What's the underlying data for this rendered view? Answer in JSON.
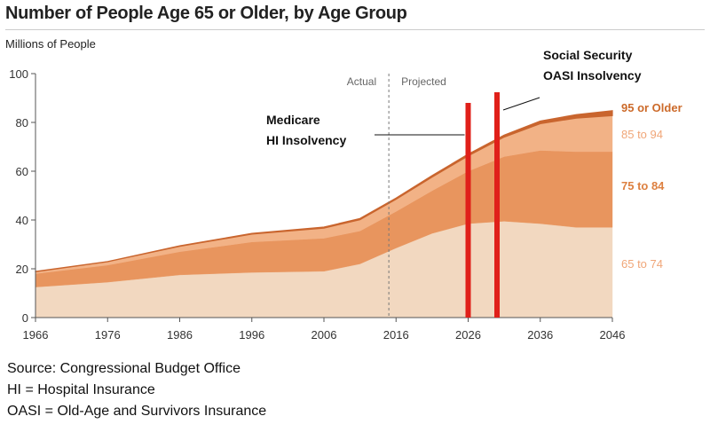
{
  "chart_data": {
    "type": "area",
    "title": "Number of People Age 65 or Older, by Age Group",
    "ylabel": "Millions of People",
    "xlabel": "",
    "xlim": [
      1966,
      2046
    ],
    "ylim": [
      0,
      100
    ],
    "x_ticks": [
      "1966",
      "1976",
      "1986",
      "1996",
      "2006",
      "2016",
      "2026",
      "2036",
      "2046"
    ],
    "y_ticks": [
      "0",
      "20",
      "40",
      "60",
      "80",
      "100"
    ],
    "stacked": true,
    "x": [
      1966,
      1976,
      1986,
      1996,
      2006,
      2011,
      2016,
      2021,
      2026,
      2031,
      2036,
      2041,
      2046
    ],
    "series": [
      {
        "name": "65 to 74",
        "color": "#f2d8c0",
        "label_color": "#f0a678",
        "values": [
          12.5,
          14.5,
          17.5,
          18.5,
          19.0,
          22.0,
          28.5,
          34.5,
          38.5,
          39.5,
          38.5,
          37.0,
          37.0
        ]
      },
      {
        "name": "75 to 84",
        "color": "#e8955e",
        "label_color": "#dd8040",
        "values": [
          5.5,
          7.0,
          9.5,
          12.5,
          13.5,
          13.5,
          15.0,
          17.5,
          21.5,
          26.5,
          30.0,
          31.0,
          31.0
        ]
      },
      {
        "name": "85 to 94",
        "color": "#f2b286",
        "label_color": "#f0a678",
        "values": [
          0.8,
          1.4,
          2.2,
          3.2,
          4.2,
          4.6,
          5.0,
          5.6,
          6.3,
          8.0,
          11.0,
          13.8,
          14.8
        ]
      },
      {
        "name": "95 or Older",
        "color": "#c9652e",
        "label_color": "#cc6a2a",
        "values": [
          0.1,
          0.1,
          0.2,
          0.3,
          0.4,
          0.5,
          0.5,
          0.6,
          0.7,
          0.8,
          1.1,
          1.4,
          2.0
        ]
      }
    ],
    "divider": {
      "x": 2015,
      "left_label": "Actual",
      "right_label": "Projected"
    },
    "events": [
      {
        "x": 2026,
        "label_lines": [
          "Medicare",
          "HI Insolvency"
        ],
        "color": "#e0201a"
      },
      {
        "x": 2030,
        "label_lines": [
          "Social Security",
          "OASI Insolvency"
        ],
        "color": "#e0201a"
      }
    ]
  },
  "notes": [
    "Source: Congressional Budget Office",
    "HI = Hospital Insurance",
    "OASI = Old-Age and Survivors Insurance"
  ]
}
